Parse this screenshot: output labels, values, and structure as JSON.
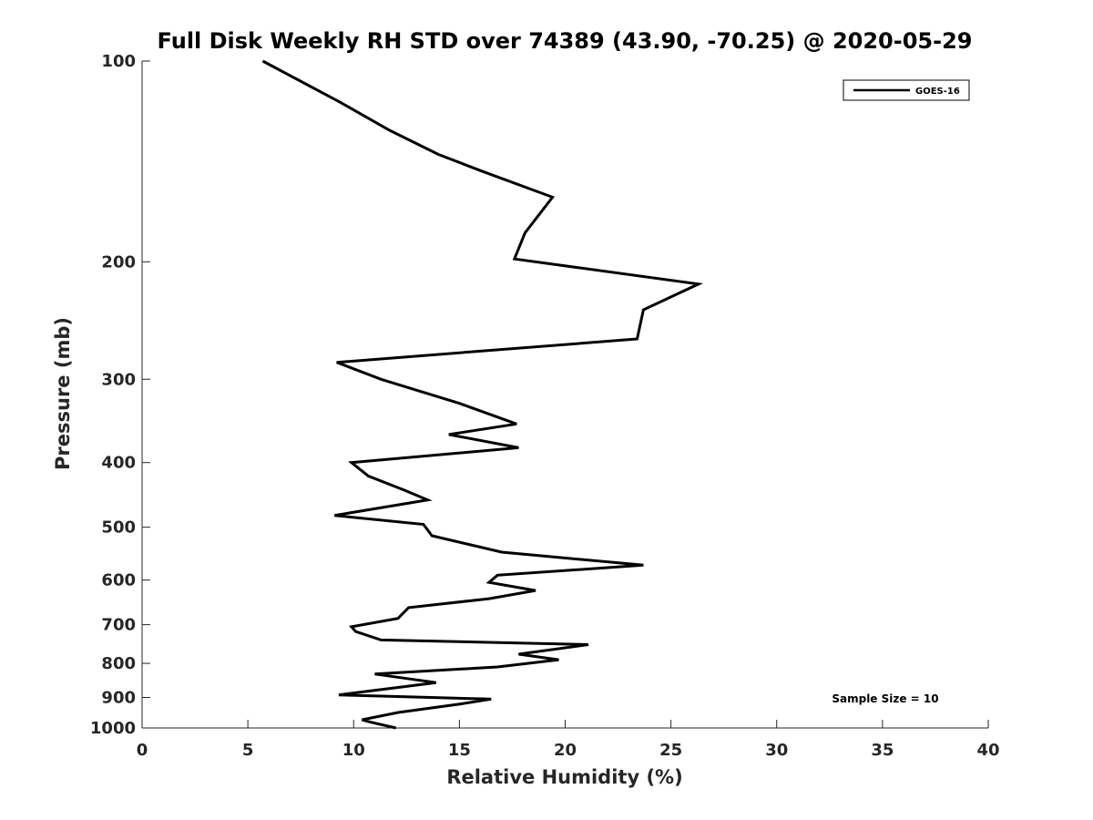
{
  "chart_data": {
    "type": "line",
    "title": "Full Disk Weekly RH STD over 74389 (43.90, -70.25) @ 2020-05-29",
    "xlabel": "Relative Humidity (%)",
    "ylabel": "Pressure (mb)",
    "xlim": [
      0,
      40
    ],
    "ylim": [
      100,
      1000
    ],
    "y_scale": "log",
    "y_reversed": true,
    "x_ticks": [
      0,
      5,
      10,
      15,
      20,
      25,
      30,
      35,
      40
    ],
    "y_ticks": [
      100,
      200,
      300,
      400,
      500,
      600,
      700,
      800,
      900,
      1000
    ],
    "grid": false,
    "legend_position": "top-right",
    "annotation": "Sample Size = 10",
    "series": [
      {
        "name": "GOES-16",
        "color": "#000000",
        "x": [
          5.7,
          9.3,
          11.7,
          14.0,
          16.0,
          19.4,
          18.1,
          17.6,
          26.3,
          23.7,
          23.4,
          9.2,
          11.3,
          15.0,
          17.7,
          14.5,
          17.8,
          9.9,
          10.7,
          12.4,
          13.5,
          9.1,
          13.3,
          13.7,
          17.0,
          23.7,
          16.8,
          16.4,
          18.6,
          16.4,
          12.6,
          12.1,
          9.9,
          10.1,
          11.3,
          21.1,
          17.8,
          19.7,
          16.8,
          11.0,
          13.9,
          9.3,
          16.5,
          15.1,
          12.1,
          10.4,
          10.8,
          12.0
        ],
        "y": [
          100,
          115,
          127,
          138,
          146,
          160,
          181,
          198,
          216,
          236,
          261,
          283,
          300,
          326,
          350,
          363,
          380,
          400,
          419,
          440,
          455,
          480,
          495,
          515,
          545,
          570,
          590,
          605,
          622,
          640,
          660,
          685,
          705,
          717,
          738,
          750,
          775,
          790,
          810,
          830,
          855,
          892,
          905,
          920,
          948,
          972,
          980,
          1000
        ]
      }
    ]
  }
}
